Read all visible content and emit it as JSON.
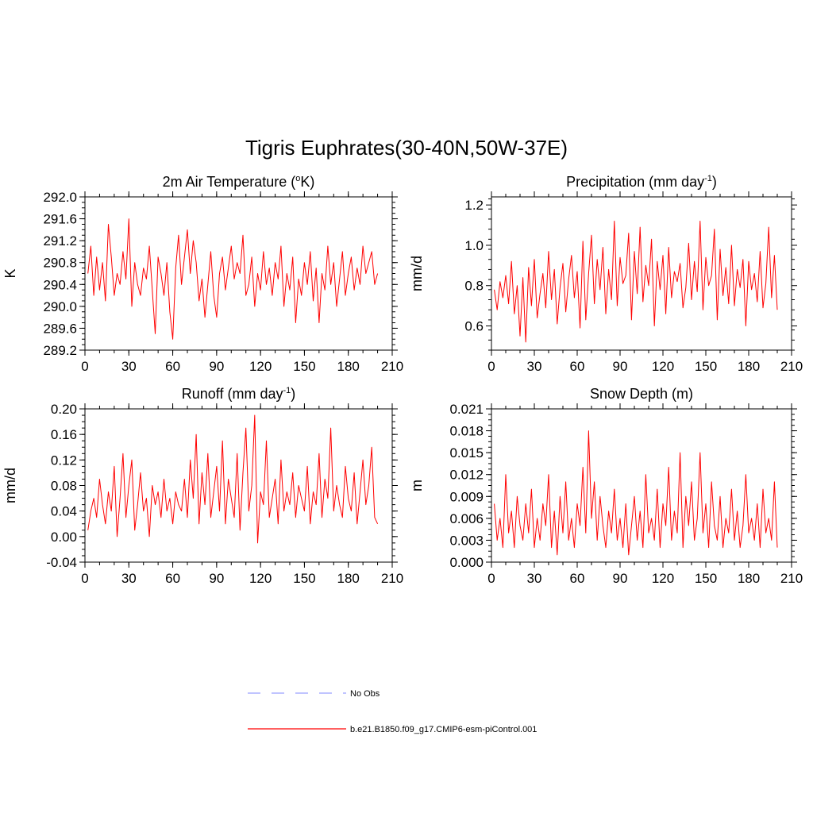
{
  "title": "Tigris Euphrates(30-40N,50W-37E)",
  "colors": {
    "model": "#ff0000",
    "obs": "#9aa0ff",
    "axis": "#000000"
  },
  "legend": {
    "obs_label": "No Obs",
    "model_label": "b.e21.B1850.f09_g17.CMIP6-esm-piControl.001"
  },
  "chart_data": [
    {
      "type": "line",
      "title": "2m Air Temperature (°K)",
      "title_base": "2m Air Temperature (",
      "title_sup": "o",
      "title_tail": "K)",
      "ylabel": "K",
      "xlim": [
        0,
        210
      ],
      "xticks": [
        0,
        30,
        60,
        90,
        120,
        150,
        180,
        210
      ],
      "ylim": [
        289.2,
        292.0
      ],
      "yticks": [
        "289.2",
        "289.6",
        "290.0",
        "290.4",
        "290.8",
        "291.2",
        "291.6",
        "292.0"
      ],
      "series": [
        {
          "name": "b.e21.B1850.f09_g17.CMIP6-esm-piControl.001",
          "values": [
            290.6,
            291.1,
            290.2,
            290.9,
            290.3,
            290.8,
            290.1,
            291.5,
            290.9,
            290.2,
            290.6,
            290.4,
            291.0,
            290.5,
            291.6,
            290.0,
            290.8,
            290.4,
            290.2,
            290.7,
            290.5,
            291.1,
            290.3,
            289.5,
            290.9,
            290.6,
            290.2,
            290.8,
            289.9,
            289.4,
            290.7,
            291.3,
            290.4,
            290.9,
            291.4,
            290.6,
            291.2,
            290.8,
            290.1,
            290.5,
            289.8,
            290.4,
            291.0,
            290.2,
            289.8,
            290.6,
            290.9,
            290.3,
            290.7,
            291.1,
            290.5,
            290.8,
            290.6,
            291.3,
            290.2,
            290.4,
            290.9,
            290.0,
            290.6,
            290.3,
            291.0,
            290.4,
            290.7,
            290.2,
            290.8,
            290.5,
            291.1,
            290.0,
            290.6,
            290.3,
            290.9,
            289.7,
            290.5,
            290.2,
            290.8,
            290.4,
            291.0,
            290.1,
            290.7,
            289.7,
            290.6,
            290.3,
            291.1,
            290.4,
            290.8,
            290.0,
            290.5,
            291.0,
            290.2,
            290.6,
            290.9,
            290.3,
            290.7,
            290.4,
            291.1,
            290.6,
            290.8,
            291.0,
            290.4,
            290.6
          ]
        }
      ]
    },
    {
      "type": "line",
      "title": "Precipitation (mm day-1)",
      "title_base": "Precipitation (mm day",
      "title_sup": "-1",
      "title_tail": ")",
      "ylabel": "mm/d",
      "xlim": [
        0,
        210
      ],
      "xticks": [
        0,
        30,
        60,
        90,
        120,
        150,
        180,
        210
      ],
      "ylim": [
        0.48,
        1.24
      ],
      "yticks": [
        "0.6",
        "0.8",
        "1.0",
        "1.2"
      ],
      "series": [
        {
          "name": "b.e21.B1850.f09_g17.CMIP6-esm-piControl.001",
          "values": [
            0.78,
            0.68,
            0.82,
            0.74,
            0.85,
            0.71,
            0.92,
            0.66,
            0.8,
            0.55,
            0.84,
            0.52,
            0.89,
            0.7,
            0.93,
            0.64,
            0.76,
            0.86,
            0.69,
            0.97,
            0.73,
            0.88,
            0.61,
            0.79,
            0.91,
            0.67,
            0.83,
            0.95,
            0.74,
            0.87,
            0.59,
            1.02,
            0.63,
            0.86,
            1.05,
            0.71,
            0.93,
            0.78,
            0.99,
            0.66,
            0.88,
            0.73,
            1.12,
            0.7,
            0.94,
            0.81,
            0.85,
            1.06,
            0.63,
            0.97,
            0.76,
            1.09,
            0.72,
            0.9,
            0.8,
            1.03,
            0.6,
            0.92,
            0.78,
            0.95,
            0.66,
            0.99,
            0.74,
            0.87,
            0.82,
            0.91,
            0.69,
            0.79,
            1.01,
            0.73,
            0.92,
            0.77,
            1.12,
            0.68,
            0.94,
            0.8,
            0.85,
            1.08,
            0.63,
            0.98,
            0.75,
            0.89,
            0.71,
            1.0,
            0.7,
            0.88,
            0.79,
            0.93,
            0.6,
            0.92,
            0.78,
            0.86,
            0.72,
            0.97,
            0.69,
            0.81,
            1.09,
            0.74,
            0.95,
            0.68
          ]
        }
      ]
    },
    {
      "type": "line",
      "title": "Runoff (mm day-1)",
      "title_base": "Runoff (mm day",
      "title_sup": "-1",
      "title_tail": ")",
      "ylabel": "mm/d",
      "xlim": [
        0,
        210
      ],
      "xticks": [
        0,
        30,
        60,
        90,
        120,
        150,
        180,
        210
      ],
      "ylim": [
        -0.04,
        0.2
      ],
      "yticks": [
        "-0.04",
        "0.00",
        "0.04",
        "0.08",
        "0.12",
        "0.16",
        "0.20"
      ],
      "series": [
        {
          "name": "b.e21.B1850.f09_g17.CMIP6-esm-piControl.001",
          "values": [
            0.01,
            0.04,
            0.06,
            0.03,
            0.09,
            0.05,
            0.02,
            0.07,
            0.04,
            0.11,
            0.0,
            0.06,
            0.13,
            0.03,
            0.08,
            0.12,
            0.01,
            0.05,
            0.1,
            0.04,
            0.06,
            0.0,
            0.08,
            0.05,
            0.07,
            0.03,
            0.09,
            0.04,
            0.06,
            0.02,
            0.07,
            0.05,
            0.04,
            0.09,
            0.03,
            0.12,
            0.06,
            0.16,
            0.02,
            0.1,
            0.05,
            0.13,
            0.03,
            0.07,
            0.11,
            0.04,
            0.15,
            0.02,
            0.09,
            0.06,
            0.03,
            0.13,
            0.01,
            0.1,
            0.17,
            0.04,
            0.08,
            0.19,
            -0.01,
            0.07,
            0.05,
            0.15,
            0.03,
            0.06,
            0.09,
            0.02,
            0.12,
            0.04,
            0.07,
            0.05,
            0.1,
            0.03,
            0.08,
            0.06,
            0.04,
            0.11,
            0.02,
            0.07,
            0.05,
            0.13,
            0.03,
            0.09,
            0.06,
            0.17,
            0.04,
            0.08,
            0.05,
            0.03,
            0.11,
            0.06,
            0.04,
            0.1,
            0.02,
            0.07,
            0.12,
            0.05,
            0.08,
            0.14,
            0.03,
            0.02
          ]
        }
      ]
    },
    {
      "type": "line",
      "title": "Snow Depth (m)",
      "title_base": "Snow Depth (m)",
      "title_sup": "",
      "title_tail": "",
      "ylabel": "m",
      "xlim": [
        0,
        210
      ],
      "xticks": [
        0,
        30,
        60,
        90,
        120,
        150,
        180,
        210
      ],
      "ylim": [
        0.0,
        0.021
      ],
      "yticks": [
        "0.000",
        "0.003",
        "0.006",
        "0.009",
        "0.012",
        "0.015",
        "0.018",
        "0.021"
      ],
      "series": [
        {
          "name": "b.e21.B1850.f09_g17.CMIP6-esm-piControl.001",
          "values": [
            0.008,
            0.003,
            0.006,
            0.002,
            0.012,
            0.004,
            0.007,
            0.002,
            0.009,
            0.005,
            0.003,
            0.008,
            0.004,
            0.01,
            0.002,
            0.006,
            0.003,
            0.008,
            0.005,
            0.012,
            0.002,
            0.007,
            0.001,
            0.009,
            0.004,
            0.011,
            0.003,
            0.006,
            0.002,
            0.008,
            0.005,
            0.013,
            0.004,
            0.018,
            0.006,
            0.011,
            0.003,
            0.009,
            0.005,
            0.002,
            0.007,
            0.004,
            0.01,
            0.003,
            0.006,
            0.002,
            0.008,
            0.001,
            0.005,
            0.009,
            0.003,
            0.007,
            0.002,
            0.012,
            0.004,
            0.006,
            0.003,
            0.01,
            0.002,
            0.008,
            0.005,
            0.013,
            0.003,
            0.007,
            0.004,
            0.015,
            0.002,
            0.009,
            0.005,
            0.011,
            0.003,
            0.006,
            0.015,
            0.004,
            0.008,
            0.002,
            0.011,
            0.005,
            0.003,
            0.009,
            0.002,
            0.006,
            0.004,
            0.01,
            0.003,
            0.007,
            0.002,
            0.005,
            0.012,
            0.004,
            0.006,
            0.003,
            0.008,
            0.002,
            0.01,
            0.004,
            0.006,
            0.003,
            0.011,
            0.002
          ]
        }
      ]
    }
  ]
}
